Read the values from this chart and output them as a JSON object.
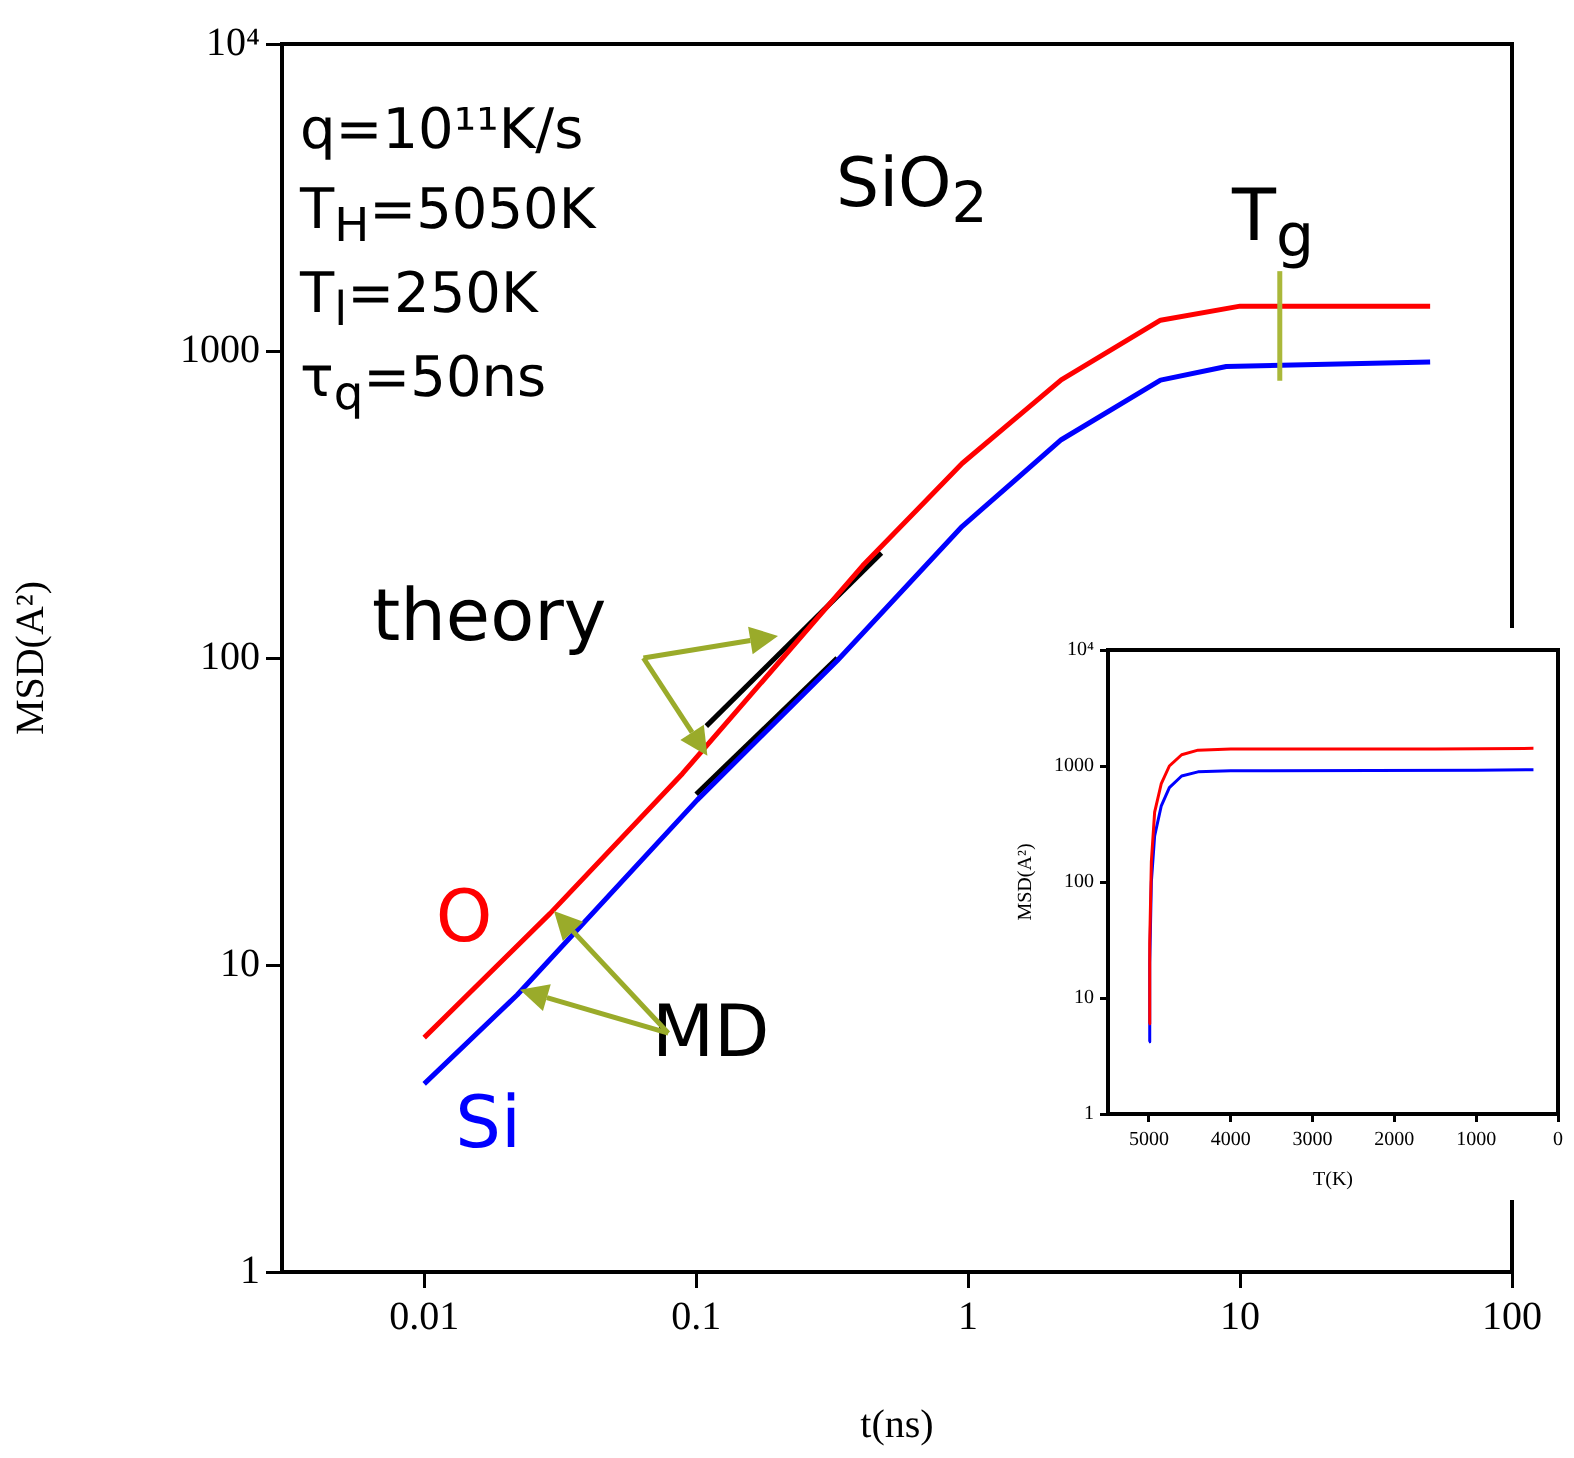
{
  "chart_data": [
    {
      "type": "line",
      "xlabel": "t(ns)",
      "ylabel": "MSD(A²)",
      "log": "xy",
      "grid": false,
      "legend": false,
      "xlim": [
        0.003,
        100
      ],
      "xticks": [
        0.01,
        0.1,
        1,
        10,
        100
      ],
      "ylim": [
        1,
        10000
      ],
      "yticks": [
        1,
        10,
        100,
        1000,
        {
          "value": 10000,
          "label": "10⁴"
        }
      ],
      "series": [
        {
          "name": "O",
          "color": "#ff0000",
          "x": [
            0.01,
            0.029,
            0.089,
            0.41,
            0.95,
            2.2,
            5.1,
            10,
            50
          ],
          "values": [
            5.8,
            14.7,
            42,
            200,
            430,
            805,
            1260,
            1400,
            1400
          ]
        },
        {
          "name": "Si",
          "color": "#0000ff",
          "x": [
            0.01,
            0.022,
            0.101,
            0.33,
            0.95,
            2.2,
            5.1,
            8.9,
            50
          ],
          "values": [
            4.1,
            8,
            34.5,
            98,
            268,
            514,
            804,
            890,
            920
          ]
        },
        {
          "color": "#000000",
          "x": [
            0.109,
            0.48
          ],
          "values": [
            60,
            220
          ]
        },
        {
          "color": "#000000",
          "x": [
            0.1,
            0.33
          ],
          "values": [
            36,
            100
          ]
        }
      ],
      "annotations": [
        "q=10¹¹K/s",
        "T$_{H}$=5050K",
        "T$_{l}$=250K",
        "τ$_{q}$=50ns",
        "SiO$_{2}$",
        "T$_{g}$",
        "theory",
        "MD"
      ]
    },
    {
      "type": "line",
      "xlabel": "T(K)",
      "ylabel": "MSD(A²)",
      "log": "y",
      "grid": false,
      "legend": false,
      "xlim": [
        5500,
        0
      ],
      "xticks": [
        5000,
        4000,
        3000,
        2000,
        1000,
        0
      ],
      "ylim": [
        1,
        10000
      ],
      "yticks": [
        1,
        10,
        100,
        1000,
        {
          "value": 10000,
          "label": "10⁴"
        }
      ],
      "series": [
        {
          "color": "#ff0000",
          "x": [
            5000,
            4990,
            4970,
            4930,
            4850,
            4750,
            4600,
            4400,
            4000,
            1500,
            300
          ],
          "values": [
            6,
            30,
            150,
            400,
            700,
            1000,
            1250,
            1370,
            1400,
            1400,
            1420
          ]
        },
        {
          "color": "#0000ff",
          "x": [
            5000,
            4990,
            4970,
            4930,
            4850,
            4750,
            4600,
            4400,
            4000,
            1000,
            300
          ],
          "values": [
            4.2,
            20,
            100,
            250,
            450,
            650,
            820,
            890,
            910,
            920,
            930
          ]
        }
      ]
    }
  ]
}
